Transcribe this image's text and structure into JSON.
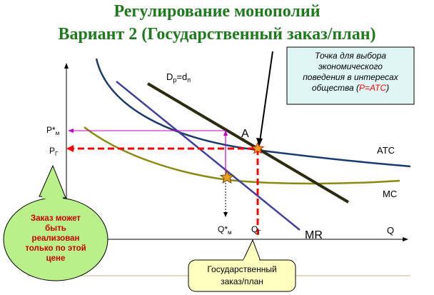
{
  "title": {
    "line1": "Регулирование монополий",
    "line2": "Вариант 2 (Государственный заказ/план)"
  },
  "labels": {
    "dp": "D",
    "dp_sub": "р",
    "dp_eq": "=d",
    "dp_sub2": "п",
    "atc": "ATC",
    "mc": "MC",
    "mr": "MR",
    "q_axis": "Q",
    "point_a": "A",
    "p_m": "P*",
    "p_m_sub": "м",
    "p_g": "P",
    "p_g_sub": "Г",
    "q_m": "Q*",
    "q_m_sub": "м",
    "q_g": "Q",
    "q_g_sub": "Г"
  },
  "callouts": {
    "top_right": {
      "line1": "Точка для выбора",
      "line2": "экономического",
      "line3": "поведения в интересах",
      "line4_prefix": "общества (",
      "line4_red": "P=ATC",
      "line4_suffix": ")"
    },
    "left_bubble": {
      "line1": "Заказ может",
      "line2": "быть",
      "line3": "реализован",
      "line4": "только по этой",
      "line5": "цене"
    },
    "bottom": {
      "line1": "Государственный",
      "line2": "заказ/план"
    }
  },
  "colors": {
    "title": "#1f7a1f",
    "atc": "#1a3a6e",
    "mc": "#8a8a10",
    "demand": "#2b2b10",
    "mr": "#4040a0",
    "dashed": "#ff0000",
    "magenta": "#cc00cc",
    "callout_top_bg": "#dff6f4",
    "callout_left_bg": "#b9f08a",
    "callout_bottom_bg": "#ffffc0",
    "star": "#e8a020"
  }
}
